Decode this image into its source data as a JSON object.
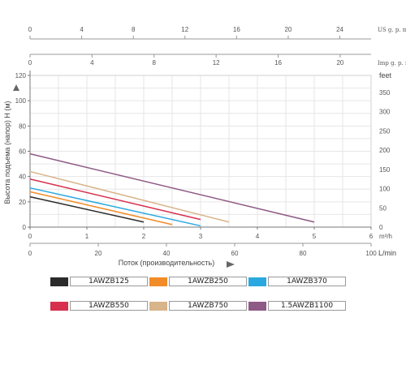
{
  "chart_data": {
    "type": "line",
    "ylabel": "Высота подъема (напор) H (м)",
    "xlabel": "Поток (производительность)",
    "ylim": [
      0,
      120
    ],
    "xlim": [
      0,
      6
    ],
    "y_ticks": [
      "0",
      "20",
      "40",
      "60",
      "80",
      "100",
      "120"
    ],
    "x_ticks": [
      "0",
      "1",
      "2",
      "3",
      "4",
      "5",
      "6"
    ],
    "x_unit": "m³/h",
    "lpm_ticks": [
      "0",
      "20",
      "40",
      "60",
      "80",
      "100"
    ],
    "lpm_unit": "L/min",
    "feet_unit": "feet",
    "feet_ticks": [
      "0",
      "50",
      "100",
      "150",
      "200",
      "250",
      "300",
      "350"
    ],
    "us_ticks": [
      "0",
      "4",
      "8",
      "12",
      "16",
      "20",
      "24"
    ],
    "us_unit": "US  g. p. m",
    "imp_ticks": [
      "0",
      "4",
      "8",
      "12",
      "16",
      "20"
    ],
    "imp_unit": "Imp  g. p. m",
    "grid": true,
    "series": [
      {
        "name": "1AWZB125",
        "color": "#2b2b2b",
        "x": [
          0,
          2
        ],
        "y": [
          24,
          4
        ]
      },
      {
        "name": "1AWZB250",
        "color": "#f28c28",
        "x": [
          0,
          2.5
        ],
        "y": [
          28,
          2
        ]
      },
      {
        "name": "1AWZB370",
        "color": "#2aa8e0",
        "x": [
          0,
          3
        ],
        "y": [
          31,
          1
        ]
      },
      {
        "name": "1AWZB550",
        "color": "#d6304e",
        "x": [
          0,
          3
        ],
        "y": [
          38,
          6
        ]
      },
      {
        "name": "1AWZB750",
        "color": "#d8b48a",
        "x": [
          0,
          3.5
        ],
        "y": [
          44,
          4
        ]
      },
      {
        "name": "1.5AWZB1100",
        "color": "#8e5a86",
        "x": [
          0,
          5
        ],
        "y": [
          58,
          4
        ]
      }
    ]
  }
}
